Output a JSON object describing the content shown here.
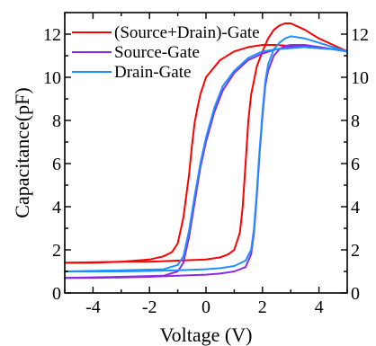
{
  "chart_data": {
    "type": "line",
    "title": "",
    "xlabel": "Voltage (V)",
    "ylabel": "Capacitance(pF)",
    "xlim": [
      -5,
      5
    ],
    "ylim": [
      0,
      13
    ],
    "x_ticks": [
      -4,
      -2,
      0,
      2,
      4
    ],
    "x_tick_labels": [
      "-4",
      "-2",
      "0",
      "2",
      "4"
    ],
    "y_ticks": [
      0,
      2,
      4,
      6,
      8,
      10,
      12
    ],
    "y_tick_labels": [
      "0",
      "2",
      "4",
      "6",
      "8",
      "10",
      "12"
    ],
    "right_y_tick_labels": [
      "0",
      "2",
      "4",
      "6",
      "8",
      "10",
      "12"
    ],
    "grid": false,
    "legend_position": "top-left",
    "series": [
      {
        "name": "(Source+Drain)-Gate",
        "color": "#ff0000",
        "forward": {
          "x": [
            -5,
            -3,
            -2,
            -1.5,
            -1.2,
            -1.0,
            -0.8,
            -0.6,
            -0.5,
            -0.4,
            -0.3,
            -0.2,
            0,
            0.5,
            1,
            1.5,
            2,
            2.5,
            3,
            3.5,
            4,
            4.5,
            5
          ],
          "y": [
            1.4,
            1.45,
            1.55,
            1.7,
            1.9,
            2.3,
            3.5,
            5.5,
            6.8,
            7.9,
            8.6,
            9.2,
            10.0,
            10.8,
            11.2,
            11.4,
            11.5,
            11.5,
            11.45,
            11.4,
            11.35,
            11.3,
            11.2
          ]
        },
        "reverse": {
          "x": [
            5,
            4.5,
            4,
            3.5,
            3,
            2.8,
            2.6,
            2.4,
            2.2,
            2.0,
            1.8,
            1.6,
            1.5,
            1.4,
            1.3,
            1.2,
            1.0,
            0.8,
            0.5,
            0,
            -1,
            -2,
            -3,
            -4,
            -5
          ],
          "y": [
            11.2,
            11.5,
            11.8,
            12.2,
            12.5,
            12.5,
            12.4,
            12.2,
            11.8,
            11.2,
            10.5,
            9.2,
            8.0,
            6.0,
            4.0,
            2.8,
            2.0,
            1.8,
            1.65,
            1.55,
            1.5,
            1.45,
            1.45,
            1.4,
            1.4
          ]
        }
      },
      {
        "name": "Source-Gate",
        "color": "#8a2be2",
        "forward": {
          "x": [
            -5,
            -3,
            -1.5,
            -1.0,
            -0.8,
            -0.6,
            -0.4,
            -0.2,
            0,
            0.3,
            0.6,
            1,
            1.5,
            2,
            2.5,
            3,
            3.5,
            4,
            4.5,
            5
          ],
          "y": [
            0.7,
            0.75,
            0.8,
            1.0,
            1.4,
            2.6,
            4.2,
            5.8,
            7.0,
            8.4,
            9.4,
            10.2,
            10.8,
            11.1,
            11.3,
            11.4,
            11.45,
            11.4,
            11.3,
            11.2
          ]
        },
        "reverse": {
          "x": [
            5,
            4.5,
            4,
            3.5,
            3,
            2.8,
            2.6,
            2.4,
            2.2,
            2.1,
            2.0,
            1.9,
            1.8,
            1.7,
            1.6,
            1.4,
            1.0,
            0.5,
            0,
            -1,
            -2,
            -3,
            -4,
            -5
          ],
          "y": [
            11.2,
            11.3,
            11.4,
            11.5,
            11.5,
            11.45,
            11.3,
            11.0,
            10.3,
            9.6,
            8.2,
            6.5,
            4.5,
            2.8,
            1.8,
            1.2,
            1.0,
            0.9,
            0.85,
            0.8,
            0.75,
            0.72,
            0.7,
            0.7
          ]
        }
      },
      {
        "name": "Drain-Gate",
        "color": "#1e90ff",
        "forward": {
          "x": [
            -5,
            -3,
            -1.5,
            -1.0,
            -0.8,
            -0.6,
            -0.4,
            -0.2,
            0,
            0.3,
            0.6,
            1,
            1.5,
            2,
            2.5,
            3,
            3.5,
            4,
            4.5,
            5
          ],
          "y": [
            1.0,
            1.05,
            1.1,
            1.3,
            1.7,
            2.9,
            4.5,
            6.0,
            7.2,
            8.6,
            9.6,
            10.3,
            10.9,
            11.2,
            11.3,
            11.35,
            11.4,
            11.35,
            11.3,
            11.2
          ]
        },
        "reverse": {
          "x": [
            5,
            4.5,
            4,
            3.5,
            3,
            2.8,
            2.6,
            2.4,
            2.2,
            2.1,
            2.0,
            1.9,
            1.8,
            1.7,
            1.6,
            1.4,
            1.0,
            0.5,
            0,
            -1,
            -2,
            -3,
            -4,
            -5
          ],
          "y": [
            11.2,
            11.4,
            11.6,
            11.8,
            11.9,
            11.8,
            11.6,
            11.3,
            10.6,
            9.8,
            8.4,
            6.7,
            4.7,
            3.0,
            2.0,
            1.5,
            1.25,
            1.15,
            1.1,
            1.05,
            1.02,
            1.0,
            1.0,
            1.0
          ]
        }
      }
    ]
  }
}
